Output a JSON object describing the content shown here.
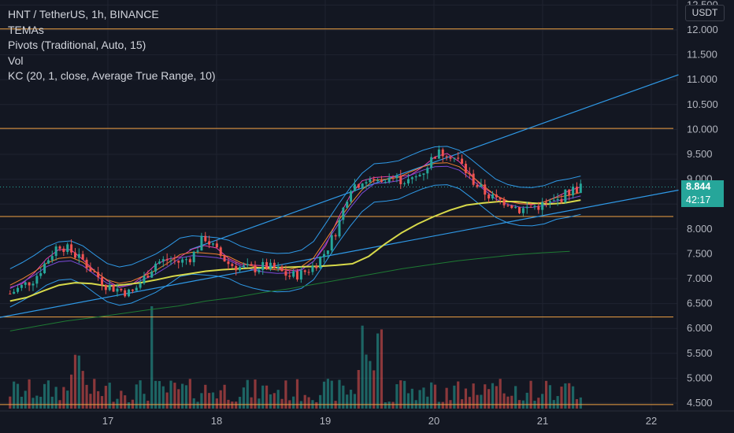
{
  "chart_data": {
    "type": "candlestick",
    "title": "HNT / TetherUS, 1h, BINANCE",
    "indicators": [
      "TEMAs",
      "Pivots (Traditional, Auto, 15)",
      "Vol",
      "KC (20, 1, close, Average True Range, 10)"
    ],
    "unit": "USDT",
    "y_ticks": [
      "12.500",
      "12.000",
      "11.500",
      "11.000",
      "10.500",
      "10.000",
      "9.500",
      "9.000",
      "8.500",
      "8.000",
      "7.500",
      "7.000",
      "6.500",
      "6.000",
      "5.500",
      "5.000",
      "4.500"
    ],
    "x_ticks": [
      "17",
      "18",
      "19",
      "20",
      "21",
      "22"
    ],
    "last_price": "8.844",
    "countdown": "42:17",
    "ylim": [
      4.45,
      12.6
    ],
    "pivot_levels": [
      12.02,
      10.02,
      8.25,
      6.23,
      4.47
    ],
    "current_price_line": 8.844,
    "trend_lines": [
      {
        "name": "upper",
        "points": [
          [
            "2021-02-17 18:00",
            7.58
          ],
          [
            "2021-02-22 06:00",
            11.1
          ]
        ]
      },
      {
        "name": "lower",
        "points": [
          [
            "2021-02-16 00:00",
            6.22
          ],
          [
            "2021-02-22 06:00",
            8.78
          ]
        ]
      }
    ],
    "price_series": [
      6.7,
      6.85,
      7.0,
      7.35,
      7.7,
      7.55,
      7.35,
      7.1,
      6.85,
      6.78,
      6.7,
      7.0,
      7.32,
      7.38,
      7.33,
      7.45,
      7.85,
      7.55,
      7.3,
      7.22,
      7.2,
      7.25,
      7.18,
      7.05,
      7.1,
      7.25,
      7.55,
      8.05,
      8.85,
      8.95,
      8.95,
      9.05,
      9.0,
      8.95,
      9.15,
      9.5,
      9.55,
      9.35,
      9.0,
      8.75,
      8.58,
      8.55,
      8.38,
      8.45,
      8.48,
      8.55,
      8.75,
      8.84
    ],
    "sma_series": [
      6.55,
      6.62,
      6.75,
      6.87,
      6.92,
      6.9,
      6.85,
      6.88,
      6.92,
      6.98,
      7.05,
      7.1,
      7.15,
      7.18,
      7.2,
      7.22,
      7.22,
      7.23,
      7.24,
      7.25,
      7.27,
      7.3,
      7.45,
      7.7,
      7.92,
      8.1,
      8.25,
      8.38,
      8.48,
      8.52,
      8.55,
      8.55,
      8.52,
      8.5,
      8.52,
      8.58
    ],
    "long_sma_series": [
      5.95,
      6.05,
      6.15,
      6.22,
      6.3,
      6.38,
      6.45,
      6.55,
      6.62,
      6.72,
      6.8,
      6.9,
      7.0,
      7.1,
      7.2,
      7.28,
      7.36,
      7.42,
      7.48,
      7.52,
      7.55
    ],
    "volume_max_label": "spike at 17 Feb evening",
    "colors": {
      "background": "#131722",
      "up": "#26a69a",
      "down": "#ef5350",
      "pivot": "#f0a243",
      "trend": "#2f9ae8",
      "sma": "#d7d94a",
      "long_sma": "#1e7a33",
      "kc": "#2f9ae8",
      "tema_fast": "#e03fb0",
      "tema_slow": "#7b4ad8",
      "badge": "#26a69a"
    }
  }
}
